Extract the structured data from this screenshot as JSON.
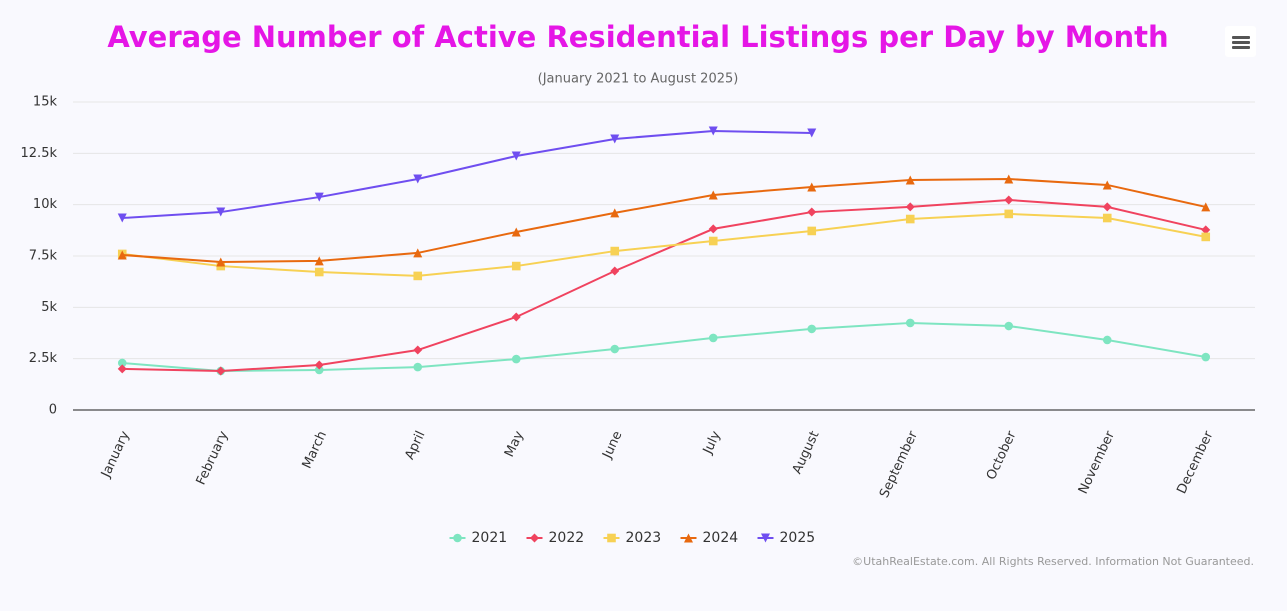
{
  "chart_data": {
    "type": "line",
    "title": "Average Number of Active Residential Listings per Day by Month",
    "subtitle": "(January 2021 to August 2025)",
    "credits": "©UtahRealEstate.com. All Rights Reserved. Information Not Guaranteed.",
    "categories": [
      "January",
      "February",
      "March",
      "April",
      "May",
      "June",
      "July",
      "August",
      "September",
      "October",
      "November",
      "December"
    ],
    "ylim": [
      0,
      15000
    ],
    "yticks": [
      0,
      {
        "value": 2500,
        "label": "2.5k"
      },
      {
        "value": 5000,
        "label": "5k"
      },
      {
        "value": 7500,
        "label": "7.5k"
      },
      {
        "value": 10000,
        "label": "10k"
      },
      {
        "value": 12500,
        "label": "12.5k"
      },
      {
        "value": 15000,
        "label": "15k"
      }
    ],
    "grid": true,
    "legend": "bottom",
    "series": [
      {
        "name": "2021",
        "color": "#7ee5c1",
        "marker": "circle",
        "values": [
          2290,
          1900,
          1950,
          2090,
          2480,
          2970,
          3510,
          3950,
          4240,
          4090,
          3410,
          2580
        ]
      },
      {
        "name": "2022",
        "color": "#f0435f",
        "marker": "diamond",
        "values": [
          2000,
          1900,
          2190,
          2920,
          4530,
          6770,
          8820,
          9640,
          9890,
          10230,
          9890,
          8770
        ]
      },
      {
        "name": "2023",
        "color": "#f7d154",
        "marker": "square",
        "values": [
          7600,
          7010,
          6720,
          6530,
          7010,
          7740,
          8230,
          8720,
          9300,
          9550,
          9350,
          8430
        ]
      },
      {
        "name": "2024",
        "color": "#e8690f",
        "marker": "triangle",
        "values": [
          7550,
          7210,
          7260,
          7650,
          8670,
          9600,
          10470,
          10860,
          11200,
          11250,
          10960,
          9890
        ]
      },
      {
        "name": "2025",
        "color": "#6f4ef0",
        "marker": "triangle-down",
        "values": [
          9350,
          9640,
          10370,
          11250,
          12370,
          13200,
          13590,
          13490,
          null,
          null,
          null,
          null
        ]
      }
    ]
  }
}
